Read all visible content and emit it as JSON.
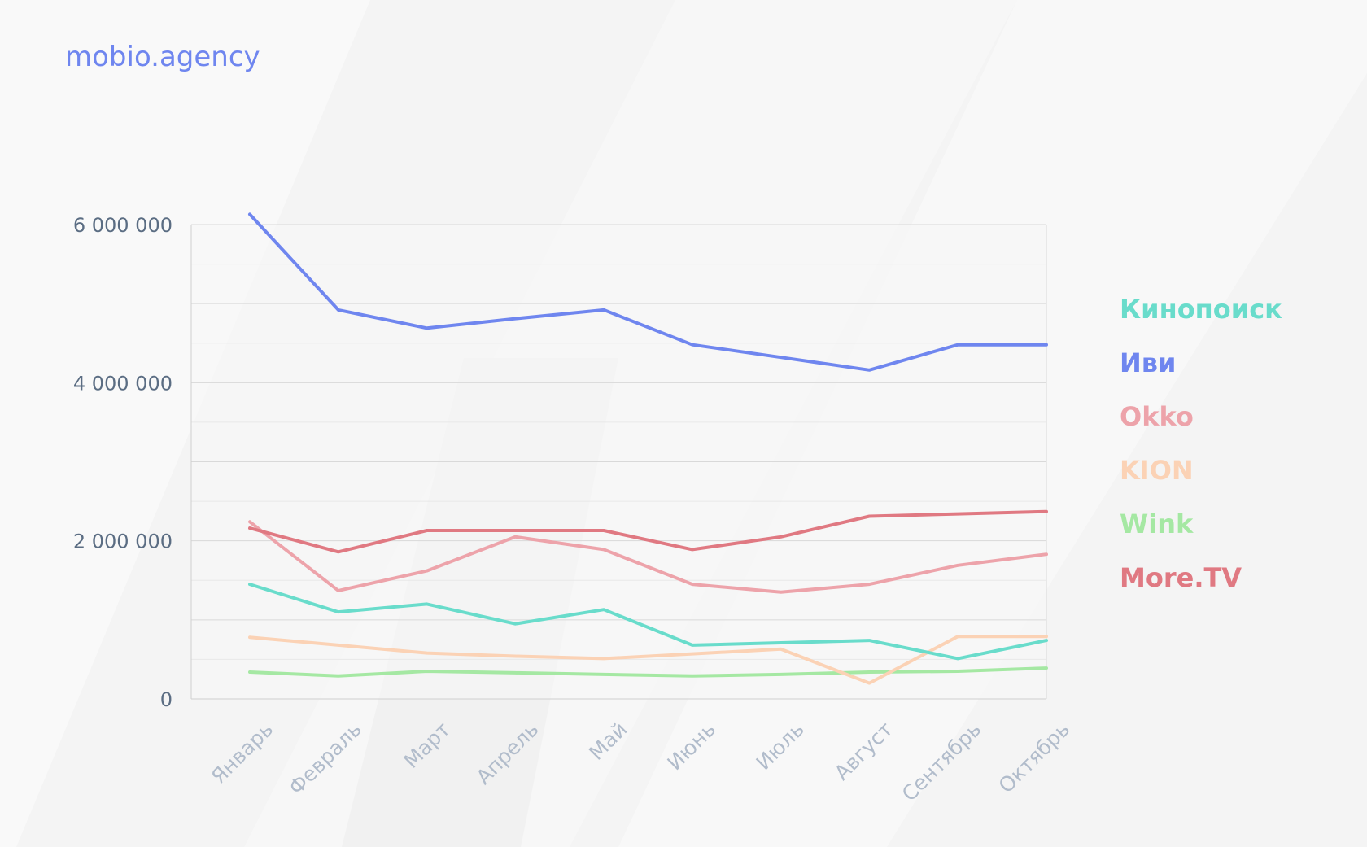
{
  "brand": {
    "text": "mobio.agency",
    "color": "#6f86ef"
  },
  "chart_data": {
    "type": "line",
    "categories": [
      "Январь",
      "Февраль",
      "Март",
      "Апрель",
      "Май",
      "Июнь",
      "Июль",
      "Август",
      "Сентябрь",
      "Октябрь"
    ],
    "ylim": [
      0,
      6000000
    ],
    "yticks": [
      0,
      2000000,
      4000000,
      6000000
    ],
    "ytick_labels": [
      "0",
      "2 000 000",
      "4 000 000",
      "6 000 000"
    ],
    "grid": true,
    "legend_position": "right",
    "series": [
      {
        "name": "Кинопоиск",
        "color": "#69dccb",
        "values": [
          1450000,
          1100000,
          1200000,
          950000,
          1130000,
          680000,
          710000,
          740000,
          510000,
          740000
        ]
      },
      {
        "name": "Иви",
        "color": "#6f86ef",
        "values": [
          6130000,
          4920000,
          4690000,
          4810000,
          4920000,
          4480000,
          4320000,
          4160000,
          4480000,
          4480000
        ]
      },
      {
        "name": "Okko",
        "color": "#eda3aa",
        "values": [
          2240000,
          1370000,
          1620000,
          2050000,
          1890000,
          1450000,
          1350000,
          1450000,
          1690000,
          1830000
        ]
      },
      {
        "name": "KION",
        "color": "#fbd2b5",
        "values": [
          780000,
          680000,
          580000,
          540000,
          510000,
          570000,
          630000,
          200000,
          790000,
          790000
        ]
      },
      {
        "name": "Wink",
        "color": "#a5e8a3",
        "values": [
          340000,
          290000,
          350000,
          330000,
          310000,
          290000,
          310000,
          340000,
          350000,
          390000
        ]
      },
      {
        "name": "More.TV",
        "color": "#e07982",
        "values": [
          2160000,
          1860000,
          2130000,
          2130000,
          2130000,
          1890000,
          2050000,
          2310000,
          2340000,
          2370000
        ]
      }
    ]
  }
}
